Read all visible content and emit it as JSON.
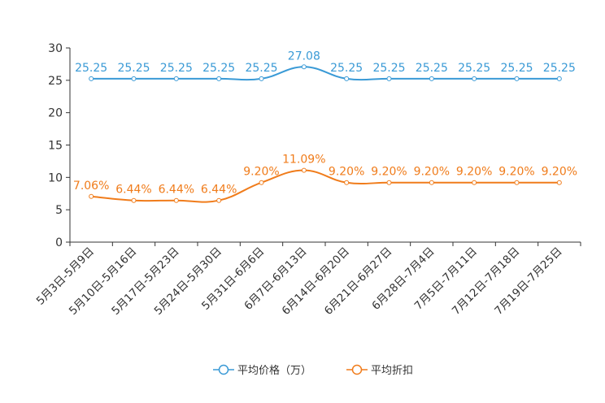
{
  "chart_data": {
    "type": "line",
    "categories": [
      "5月3日-5月9日",
      "5月10日-5月16日",
      "5月17日-5月23日",
      "5月24日-5月30日",
      "5月31日-6月6日",
      "6月7日-6月13日",
      "6月14日-6月20日",
      "6月21日-6月27日",
      "6月28日-7月4日",
      "7月5日-7月11日",
      "7月12日-7月18日",
      "7月19日-7月25日"
    ],
    "ylim": [
      0,
      30
    ],
    "yticks": [
      "0",
      "5",
      "10",
      "15",
      "20",
      "25",
      "30"
    ],
    "series": [
      {
        "name": "平均价格（万）",
        "color": "#3a9ad6",
        "values": [
          25.25,
          25.25,
          25.25,
          25.25,
          25.25,
          27.08,
          25.25,
          25.25,
          25.25,
          25.25,
          25.25,
          25.25
        ],
        "labels": [
          "25.25",
          "25.25",
          "25.25",
          "25.25",
          "25.25",
          "27.08",
          "25.25",
          "25.25",
          "25.25",
          "25.25",
          "25.25",
          "25.25"
        ]
      },
      {
        "name": "平均折扣",
        "color": "#f07c1b",
        "values": [
          7.06,
          6.44,
          6.44,
          6.44,
          9.2,
          11.09,
          9.2,
          9.2,
          9.2,
          9.2,
          9.2,
          9.2
        ],
        "labels": [
          "7.06%",
          "6.44%",
          "6.44%",
          "6.44%",
          "9.20%",
          "11.09%",
          "9.20%",
          "9.20%",
          "9.20%",
          "9.20%",
          "9.20%",
          "9.20%"
        ]
      }
    ]
  }
}
